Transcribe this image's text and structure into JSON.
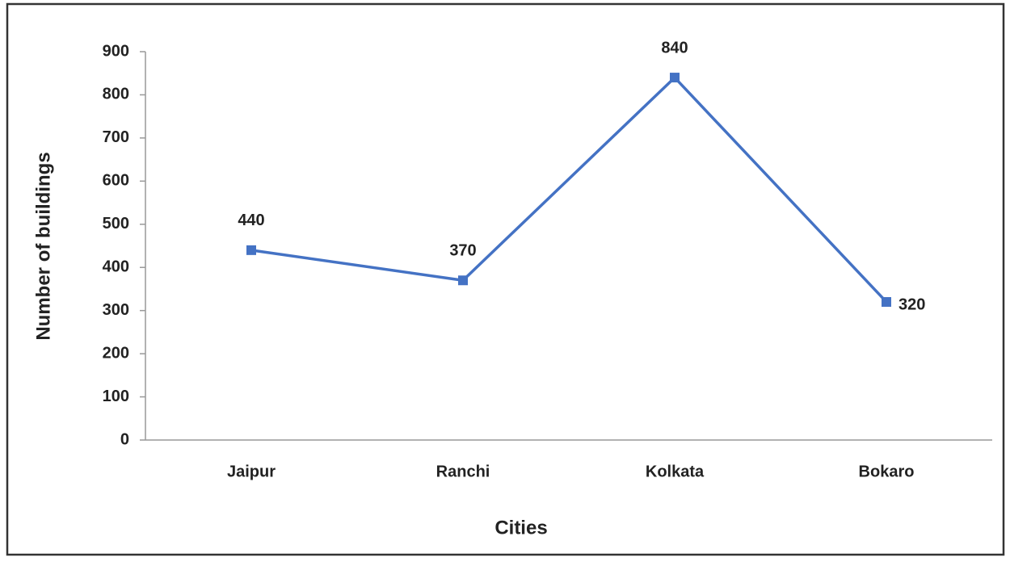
{
  "chart_data": {
    "type": "line",
    "x_label": "Cities",
    "y_label": "Number of buildings",
    "categories": [
      "Jaipur",
      "Ranchi",
      "Kolkata",
      "Bokaro"
    ],
    "series": [
      {
        "name": "Number of buildings",
        "color": "#4472c4",
        "values": [
          440,
          370,
          840,
          320
        ]
      }
    ],
    "ylim": [
      0,
      900
    ],
    "yticks": [
      0,
      100,
      200,
      300,
      400,
      500,
      600,
      700,
      800,
      900
    ],
    "grid": false,
    "legend": false
  }
}
